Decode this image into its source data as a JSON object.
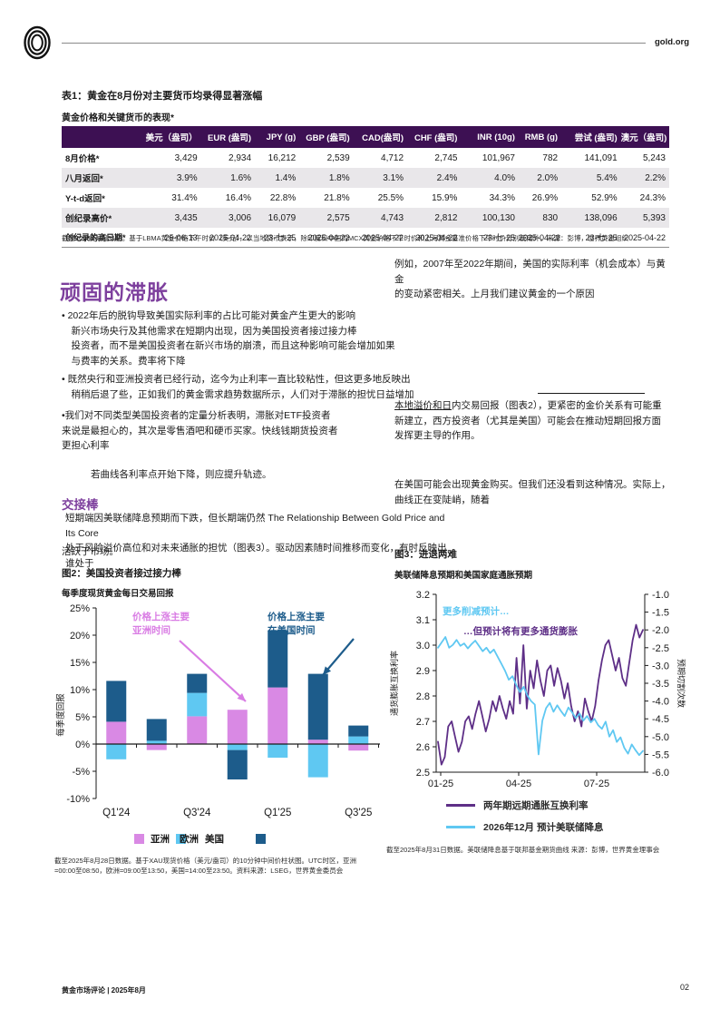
{
  "header": {
    "brand": "gold.org",
    "logo": "concentric-rings-logo"
  },
  "table1": {
    "title": "表1：黄金在8月份对主要货币均录得显著涨幅",
    "subtitle": "黄金价格和关键货币的表现*",
    "columns": [
      "",
      "美元（盎司）",
      "EUR (盎司)",
      "JPY (g)",
      "GBP (盎司)",
      "CAD(盎司)",
      "CHF (盎司)",
      "INR (10g)",
      "RMB (g)",
      "尝试 (盎司)",
      "澳元（盎司)"
    ],
    "rows": [
      {
        "label": "8月价格*",
        "values": [
          "3,429",
          "2,934",
          "16,212",
          "2,539",
          "4,712",
          "2,745",
          "101,967",
          "782",
          "141,091",
          "5,243"
        ]
      },
      {
        "label": "八月返回*",
        "values": [
          "3.9%",
          "1.6%",
          "1.4%",
          "1.8%",
          "3.1%",
          "2.4%",
          "4.0%",
          "2.0%",
          "5.4%",
          "2.2%"
        ]
      },
      {
        "label": "Y-t-d返回*",
        "values": [
          "31.4%",
          "16.4%",
          "22.8%",
          "21.8%",
          "25.5%",
          "15.9%",
          "34.3%",
          "26.9%",
          "52.9%",
          "24.3%"
        ]
      },
      {
        "label": "创纪录高价*",
        "values": [
          "3,435",
          "3,006",
          "16,079",
          "2,575",
          "4,743",
          "2,812",
          "100,130",
          "830",
          "138,096",
          "5,393"
        ]
      },
      {
        "label": "创纪录的高日期*",
        "values": [
          "25-06-13",
          "2025-04-22",
          "23-七-25",
          "2025-04-22",
          "2025-04-22",
          "2025-04-22",
          "23-七-25",
          "2025-04-22",
          "23-七-25",
          "2025-04-22"
        ]
      }
    ],
    "footnote": "截至2025年8月31日。基于LBMA黄金价格下午时价（美元），以当地货币表示，除印度和中国的MCX黄金价格下午时价和上海黄金基准价格下午时价分别使用外。来源：彭博，世界黄金组织"
  },
  "body": {
    "right_para1": "例如，2007年至2022年期间，美国的实际利率（机会成本）与黄金\n的变动紧密相关。上月我们建议黄金的一个原因",
    "h1": "顽固的滞胀",
    "bullet1": "• 2022年后的脱钩导致美国实际利率的占比可能对黄金产生更大的影响\n　新兴市场央行及其他需求在短期内出现，因为美国投资者接过接力棒\n　投资者，而不是美国投资者在新兴市场的崩溃，而且这种影响可能会增加如果\n　与费率的关系。费率将下降",
    "bullet2": "• 既然央行和亚洲投资者已经行动，迄今为止利率一直比较粘性，但这更多地反映出\n　稍稍后退了些，正如我们的黄金需求趋势数据所示，人们对于滞胀的担忧日益增加",
    "bullet3": "•我们对不同类型美国投资者的定量分析表明，滞胀对ETF投资者\n来说是最担心的，其次是零售酒吧和硬币买家。快线钱期货投资者\n更担心利率",
    "indent_para": "若曲线各利率点开始下降，则应提升轨迹。",
    "right_para2_link": "本地溢价和日",
    "right_para2_rest": "内交易回报（图表2），更紧密的金价关系有可能重新建立，西方投资者（尤其是美国）可能会在推动短期回报方面发挥更主导的作用。",
    "right_para3": "在美国可能会出现黄金购买。但我们还没看到这种情况。实际上，\n曲线正在变陡峭，随着",
    "h2": "交接棒",
    "handover_para": "短期端因美联储降息预期而下跌，但长期端仍然 The Relationship Between Gold Price and Its Core\n处于风险溢价高位和对未来通胀的担忧（图表3）。驱动因素随时间推移而变化，有时反映出谁处于",
    "active_para": "活跃于市场。"
  },
  "fig2": {
    "title": "图2：美国投资者接过接力棒",
    "subtitle": "每季度现货黄金每日交易回报",
    "legend": [
      "亚洲",
      "欧洲",
      "美国"
    ],
    "footnote": "截至2025年8月28日数据。基于XAU现货价格（美元/盎司）的10分钟中间价柱状图。UTC时区，亚洲=00:00至08:50，欧洲=09:00至13:50，美国=14:00至23:50。资料来源：LSEG，世界黄金委员会"
  },
  "fig3": {
    "title": "图3：进退两难",
    "subtitle": "美联储降息预期和美国家庭通胀预期",
    "footnote": "截至2025年8月31日数据。美联储降息基于联邦基金期货曲线 来源：彭博，世界黄金理事会"
  },
  "footer": {
    "left": "黄金市场评论 | 2025年8月",
    "page": "02"
  },
  "colors": {
    "brand_purple": "#3d1053",
    "heading_purple": "#7d3f9d",
    "asia_pink": "#d989e4",
    "europe_blue": "#5fc8f2",
    "us_navy": "#1d5c8b",
    "swap_purple": "#5e2f87"
  },
  "chart_data": [
    {
      "type": "bar",
      "title": "图2：美国投资者接过接力棒",
      "subtitle": "每季度现货黄金每日交易回报",
      "ylabel": "每季度回报",
      "ylim": [
        -10,
        25
      ],
      "yticks": [
        25,
        20,
        15,
        10,
        5,
        0,
        -5,
        -10
      ],
      "colors": {
        "asia": "#d989e4",
        "europe": "#5fc8f2",
        "us": "#1d5c8b"
      },
      "categories": [
        "Q1'24",
        "Q2'24",
        "Q3'24",
        "Q4'24",
        "Q1'25",
        "Q2'25",
        "Q3'25"
      ],
      "bars": [
        {
          "q": "Q1'24",
          "segments": [
            {
              "s": "asia",
              "v": 4.1
            },
            {
              "s": "us",
              "v": 7.5
            },
            {
              "s": "europe",
              "v": -2.8
            }
          ]
        },
        {
          "q": "Q2'24",
          "segments": [
            {
              "s": "europe",
              "v": 0.6
            },
            {
              "s": "us",
              "v": 4.0
            },
            {
              "s": "asia",
              "v": -1.1
            }
          ]
        },
        {
          "q": "Q3'24",
          "segments": [
            {
              "s": "asia",
              "v": 5.1
            },
            {
              "s": "europe",
              "v": 4.3
            },
            {
              "s": "us",
              "v": 3.5
            }
          ]
        },
        {
          "q": "Q4'24",
          "segments": [
            {
              "s": "asia",
              "v": 6.3
            },
            {
              "s": "europe",
              "v": -1.1
            },
            {
              "s": "us",
              "v": -5.4
            }
          ]
        },
        {
          "q": "Q1'25",
          "segments": [
            {
              "s": "asia",
              "v": 10.4
            },
            {
              "s": "us",
              "v": 10.5
            },
            {
              "s": "europe",
              "v": -2.5
            }
          ]
        },
        {
          "q": "Q2'25",
          "segments": [
            {
              "s": "asia",
              "v": 0.8
            },
            {
              "s": "us",
              "v": 12.1
            },
            {
              "s": "europe",
              "v": -6.1
            }
          ]
        },
        {
          "q": "Q3'25",
          "segments": [
            {
              "s": "europe",
              "v": 1.4
            },
            {
              "s": "us",
              "v": 2.0
            },
            {
              "s": "asia",
              "v": -1.2
            }
          ]
        }
      ],
      "xticks": [
        {
          "label": "Q1'24",
          "slot": 0
        },
        {
          "label": "Q3'24",
          "slot": 2
        },
        {
          "label": "Q1'25",
          "slot": 4
        },
        {
          "label": "Q3'25",
          "slot": 6
        }
      ],
      "legend": [
        "亚洲",
        "欧洲",
        "美国"
      ],
      "annotations": [
        {
          "lines": [
            "价格上涨主要",
            "亚洲时间"
          ],
          "x": 88,
          "y": 27,
          "color": "#d97ce4",
          "arrow": [
            140,
            50,
            213,
            117
          ]
        },
        {
          "lines": [
            "价格上涨主要",
            "在美国时间"
          ],
          "x": 237,
          "y": 27,
          "color": "#1d5c8b",
          "arrow": [
            332,
            48,
            298,
            88
          ]
        }
      ]
    },
    {
      "type": "line",
      "title": "图3：进退两难",
      "subtitle": "美联储降息预期和美国家庭通胀预期",
      "left_axis": {
        "label": "通货膨胀互换利率",
        "ticks": [
          3.2,
          3.1,
          3.0,
          2.9,
          2.8,
          2.7,
          2.6,
          2.5
        ],
        "range": [
          2.5,
          3.2
        ]
      },
      "right_axis": {
        "label": "预期切割次数",
        "ticks": [
          -1.0,
          -1.5,
          -2.0,
          -2.5,
          -3.0,
          -3.5,
          -4.0,
          -4.5,
          -5.0,
          -5.5,
          -6.0
        ],
        "range": [
          -6.0,
          -1.0
        ]
      },
      "xticks": [
        "01-25",
        "04-25",
        "07-25"
      ],
      "series": [
        {
          "name": "两年期远期通胀互换利率",
          "axis": "left",
          "color": "#5e2f87",
          "values": [
            2.62,
            2.53,
            2.56,
            2.68,
            2.7,
            2.64,
            2.58,
            2.62,
            2.7,
            2.72,
            2.67,
            2.73,
            2.78,
            2.72,
            2.66,
            2.71,
            2.78,
            2.74,
            2.8,
            2.75,
            2.71,
            2.78,
            2.73,
            2.95,
            2.77,
            3.0,
            2.75,
            2.9,
            2.83,
            2.94,
            2.86,
            2.8,
            2.9,
            2.92,
            2.84,
            2.91,
            2.86,
            2.79,
            2.85,
            2.76,
            2.7,
            2.74,
            2.68,
            2.79,
            2.74,
            2.7,
            2.76,
            2.86,
            2.94,
            3.0,
            3.02,
            2.96,
            2.9,
            2.95,
            2.87,
            2.84,
            2.93,
            3.02,
            3.08,
            3.03,
            3.06
          ]
        },
        {
          "name": "2026年12月 预计美联储降息",
          "axis": "right",
          "color": "#5fc8f2",
          "values": [
            -2.5,
            -2.35,
            -2.2,
            -2.5,
            -2.42,
            -2.28,
            -2.45,
            -2.38,
            -2.52,
            -2.4,
            -2.3,
            -2.45,
            -2.6,
            -2.5,
            -2.65,
            -2.55,
            -2.75,
            -2.95,
            -3.15,
            -3.4,
            -3.3,
            -3.55,
            -3.75,
            -3.6,
            -3.85,
            -4.0,
            -4.1,
            -5.5,
            -4.55,
            -4.2,
            -4.05,
            -4.3,
            -4.12,
            -4.28,
            -4.42,
            -4.18,
            -4.32,
            -4.48,
            -4.35,
            -4.55,
            -4.42,
            -4.6,
            -4.5,
            -4.68,
            -4.78,
            -4.58,
            -5.0,
            -4.82,
            -5.15,
            -5.02,
            -5.32,
            -5.48,
            -5.22,
            -5.38,
            -5.52,
            -5.4
          ]
        }
      ],
      "annotations": [
        {
          "text": "更多削减预计…",
          "x": 62,
          "y": 34,
          "color": "#5fc8f2"
        },
        {
          "text": "…但预计将有更多通货膨胀",
          "x": 85,
          "y": 56,
          "color": "#5e2f87"
        }
      ]
    }
  ]
}
